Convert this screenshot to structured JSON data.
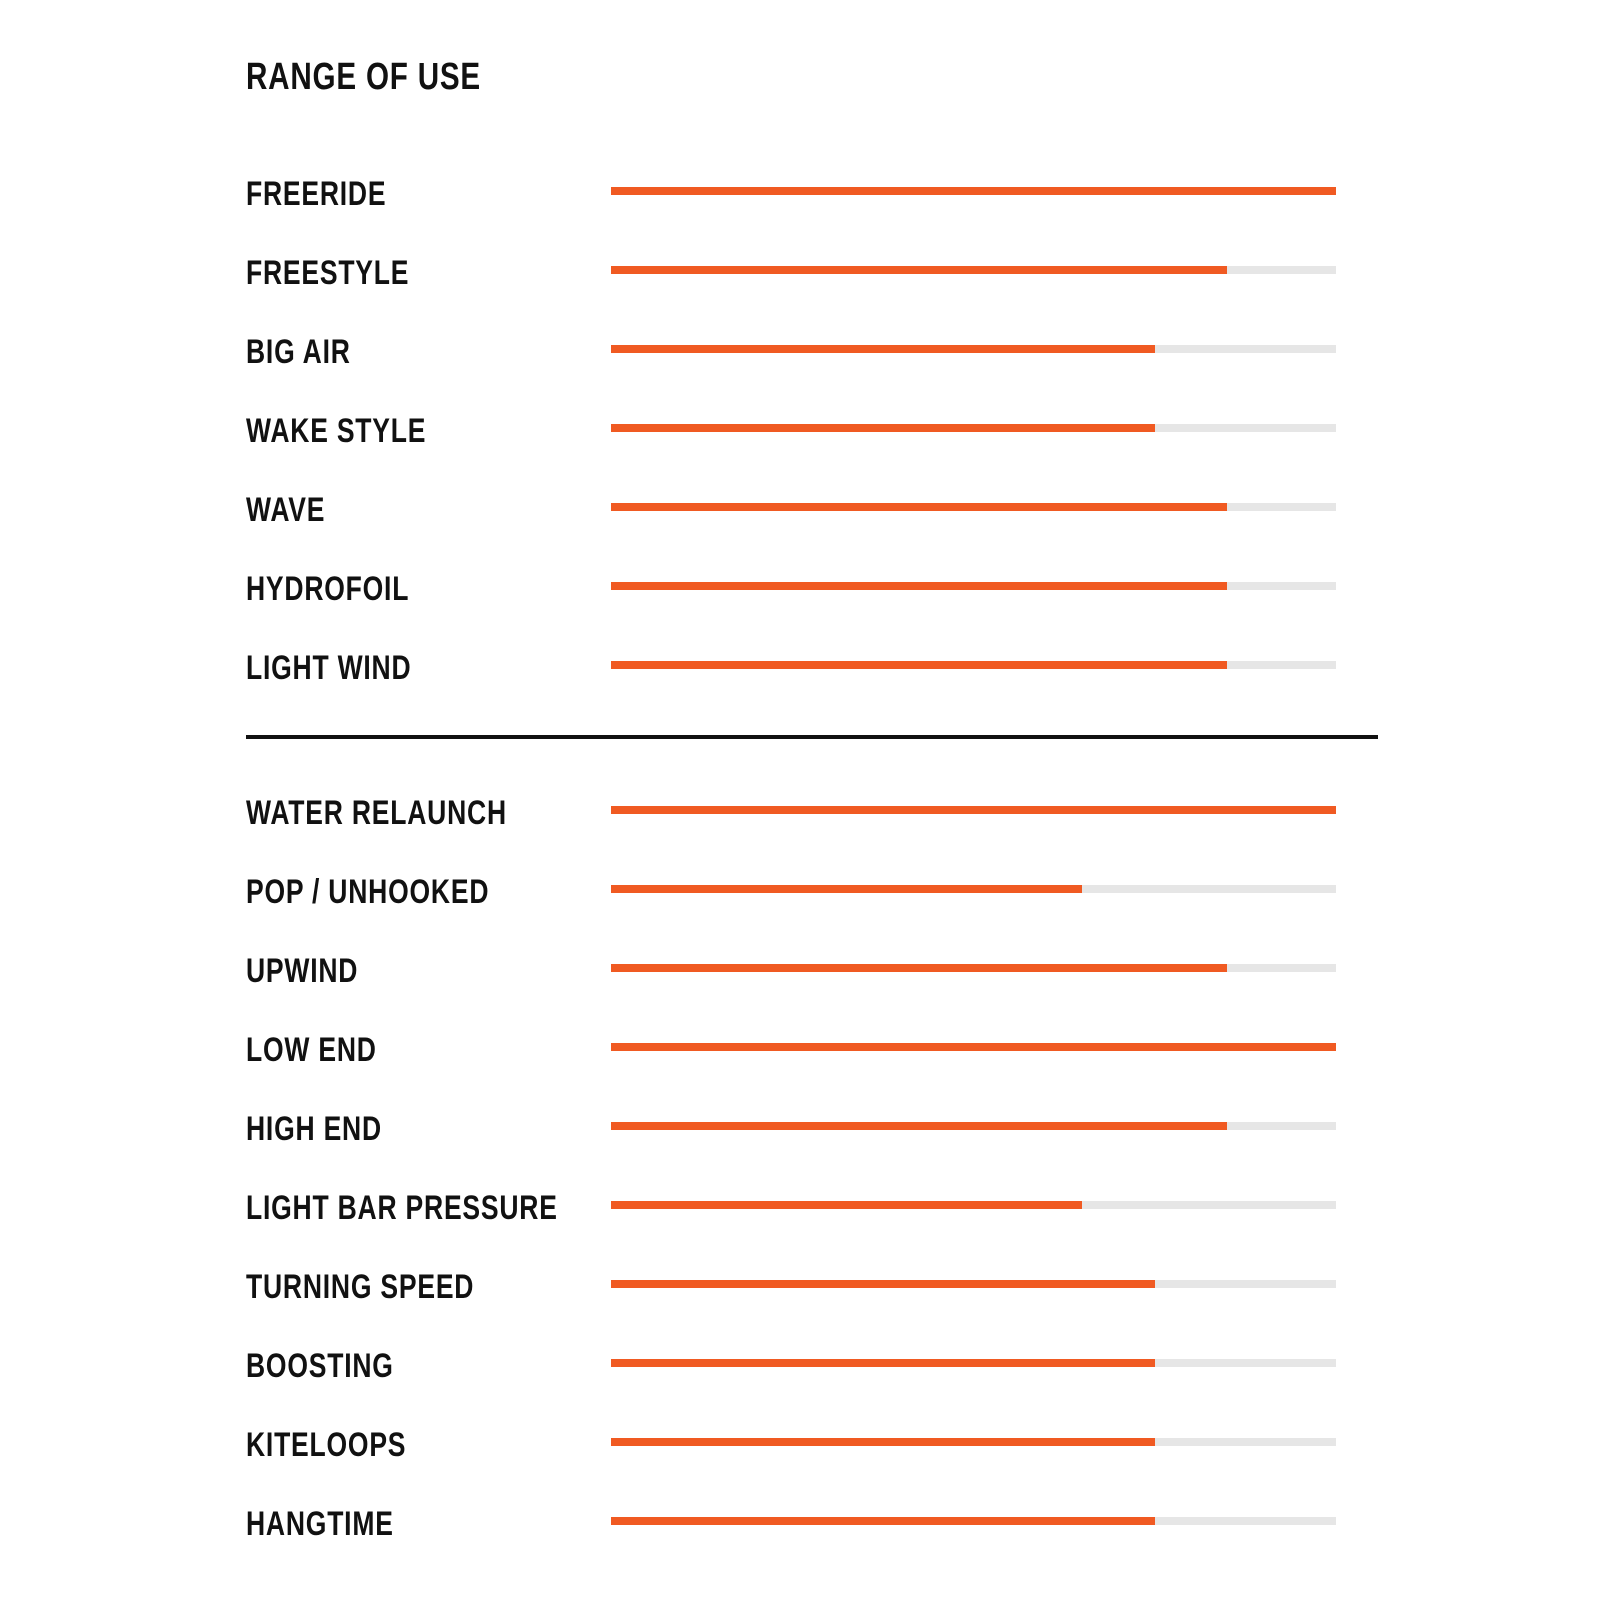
{
  "title": "RANGE OF USE",
  "colors": {
    "fill": "#f05a22",
    "track": "#e6e6e6"
  },
  "chart_data": {
    "type": "bar",
    "orientation": "horizontal",
    "xlim": [
      0,
      100
    ],
    "groups": [
      {
        "categories": [
          "FREERIDE",
          "FREESTYLE",
          "BIG AIR",
          "WAKE STYLE",
          "WAVE",
          "HYDROFOIL",
          "LIGHT WIND"
        ],
        "values": [
          100,
          85,
          75,
          75,
          85,
          85,
          85
        ]
      },
      {
        "categories": [
          "WATER RELAUNCH",
          "POP / UNHOOKED",
          "UPWIND",
          "LOW END",
          "HIGH END",
          "LIGHT BAR PRESSURE",
          "TURNING SPEED",
          "BOOSTING",
          "KITELOOPS",
          "HANGTIME"
        ],
        "values": [
          100,
          65,
          85,
          100,
          85,
          65,
          75,
          75,
          75,
          75
        ]
      }
    ]
  }
}
